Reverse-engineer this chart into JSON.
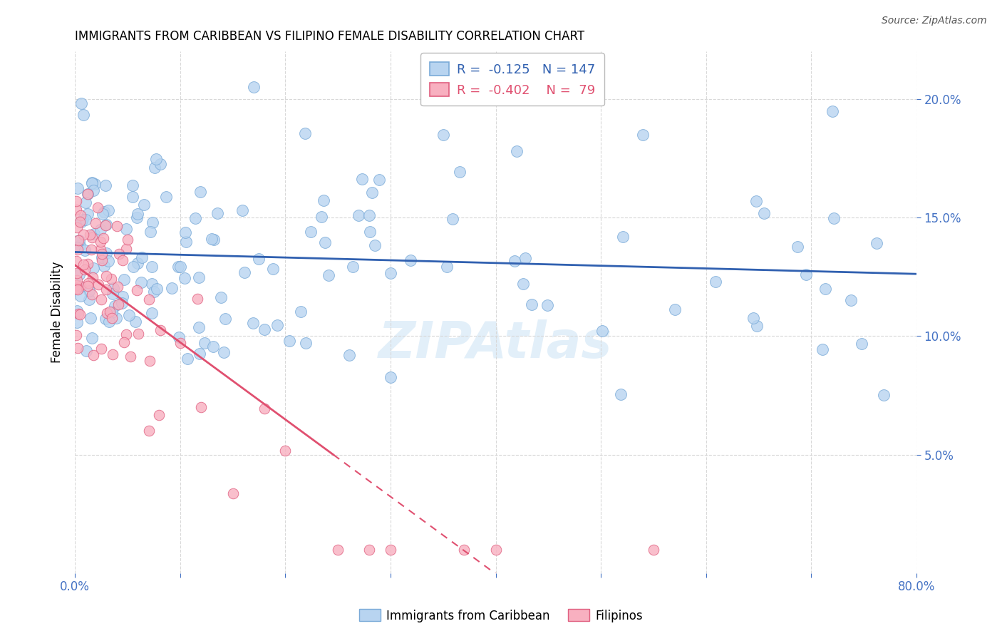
{
  "title": "IMMIGRANTS FROM CARIBBEAN VS FILIPINO FEMALE DISABILITY CORRELATION CHART",
  "source": "Source: ZipAtlas.com",
  "ylabel": "Female Disability",
  "right_yticks": [
    "5.0%",
    "10.0%",
    "15.0%",
    "20.0%"
  ],
  "right_ytick_vals": [
    0.05,
    0.1,
    0.15,
    0.2
  ],
  "watermark": "ZIPAtlas",
  "legend_entries": [
    {
      "label": "Immigrants from Caribbean",
      "R": "-0.125",
      "N": "147",
      "color": "#aac4e8"
    },
    {
      "label": "Filipinos",
      "R": "-0.402",
      "N": "79",
      "color": "#f4a0b5"
    }
  ],
  "caribbean_color": "#b8d4f0",
  "caribbean_edge": "#7aaad8",
  "filipino_color": "#f8b0c0",
  "filipino_edge": "#e06080",
  "trend_caribbean_color": "#3060b0",
  "trend_filipino_color": "#e05070",
  "xlim": [
    0.0,
    0.8
  ],
  "ylim": [
    0.0,
    0.22
  ],
  "background_color": "#ffffff",
  "grid_color": "#d8d8d8",
  "title_fontsize": 12,
  "axis_label_color": "#4472c4"
}
